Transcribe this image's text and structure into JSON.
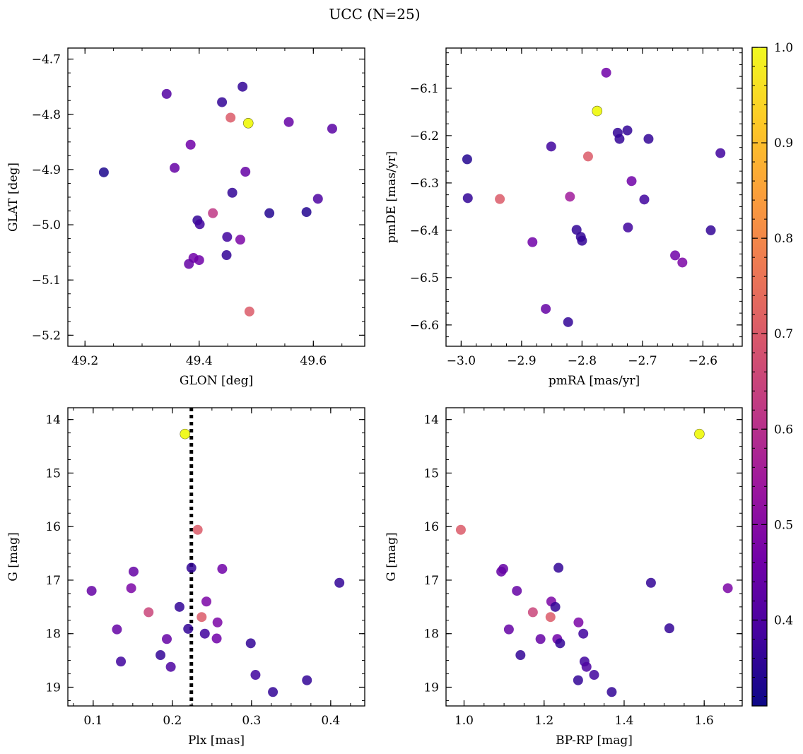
{
  "figure": {
    "title": "UCC (N=25)"
  },
  "colorbar": {
    "min": 0.31,
    "max": 1.0,
    "ticks": [
      0.4,
      0.5,
      0.6,
      0.7,
      0.8,
      0.9,
      1.0
    ],
    "tick_labels": [
      "0.4",
      "0.5",
      "0.6",
      "0.7",
      "0.8",
      "0.9",
      "1.0"
    ],
    "stops": [
      "#0d0887",
      "#46039f",
      "#7201a8",
      "#9c179e",
      "#bd3786",
      "#d8576b",
      "#ed7953",
      "#fb9f3a",
      "#fdca26",
      "#f0f921"
    ]
  },
  "chart_data": [
    {
      "type": "scatter",
      "panel": "position",
      "xlabel": "GLON [deg]",
      "ylabel": "GLAT [deg]",
      "xlim": [
        49.17,
        49.69
      ],
      "ylim": [
        -5.22,
        -4.68
      ],
      "y_inverted": false,
      "xticks": [
        49.2,
        49.4,
        49.6
      ],
      "xtick_labels": [
        "49.2",
        "49.4",
        "49.6"
      ],
      "yticks": [
        -5.2,
        -5.1,
        -5.0,
        -4.9,
        -4.8,
        -4.7
      ],
      "ytick_labels": [
        "−5.2",
        "−5.1",
        "−5.0",
        "−4.9",
        "−4.8",
        "−4.7"
      ],
      "points": [
        {
          "x": 49.233,
          "y": -4.905,
          "c": 0.33
        },
        {
          "x": 49.343,
          "y": -4.763,
          "c": 0.41
        },
        {
          "x": 49.357,
          "y": -4.897,
          "c": 0.44
        },
        {
          "x": 49.385,
          "y": -4.855,
          "c": 0.46
        },
        {
          "x": 49.44,
          "y": -4.778,
          "c": 0.36
        },
        {
          "x": 49.455,
          "y": -4.806,
          "c": 0.7
        },
        {
          "x": 49.476,
          "y": -4.75,
          "c": 0.36
        },
        {
          "x": 49.486,
          "y": -4.816,
          "c": 1.0
        },
        {
          "x": 49.481,
          "y": -4.904,
          "c": 0.44
        },
        {
          "x": 49.557,
          "y": -4.814,
          "c": 0.44
        },
        {
          "x": 49.633,
          "y": -4.826,
          "c": 0.42
        },
        {
          "x": 49.458,
          "y": -4.942,
          "c": 0.36
        },
        {
          "x": 49.608,
          "y": -4.953,
          "c": 0.4
        },
        {
          "x": 49.424,
          "y": -4.979,
          "c": 0.62
        },
        {
          "x": 49.523,
          "y": -4.979,
          "c": 0.34
        },
        {
          "x": 49.588,
          "y": -4.977,
          "c": 0.34
        },
        {
          "x": 49.397,
          "y": -4.992,
          "c": 0.36
        },
        {
          "x": 49.401,
          "y": -4.999,
          "c": 0.38
        },
        {
          "x": 49.449,
          "y": -5.022,
          "c": 0.38
        },
        {
          "x": 49.472,
          "y": -5.027,
          "c": 0.48
        },
        {
          "x": 49.448,
          "y": -5.055,
          "c": 0.36
        },
        {
          "x": 49.39,
          "y": -5.06,
          "c": 0.46
        },
        {
          "x": 49.4,
          "y": -5.064,
          "c": 0.46
        },
        {
          "x": 49.382,
          "y": -5.071,
          "c": 0.44
        },
        {
          "x": 49.488,
          "y": -5.157,
          "c": 0.7
        }
      ]
    },
    {
      "type": "scatter",
      "panel": "proper-motion",
      "xlabel": "pmRA [mas/yr]",
      "ylabel": "pmDE [mas/yr]",
      "xlim": [
        -3.025,
        -2.535
      ],
      "ylim": [
        -6.645,
        -6.015
      ],
      "y_inverted": false,
      "xticks": [
        -3.0,
        -2.9,
        -2.8,
        -2.7,
        -2.6
      ],
      "xtick_labels": [
        "−3.0",
        "−2.9",
        "−2.8",
        "−2.7",
        "−2.6"
      ],
      "yticks": [
        -6.6,
        -6.5,
        -6.4,
        -6.3,
        -6.2,
        -6.1
      ],
      "ytick_labels": [
        "−6.6",
        "−6.5",
        "−6.4",
        "−6.3",
        "−6.2",
        "−6.1"
      ],
      "points": [
        {
          "x": -2.76,
          "y": -6.067,
          "c": 0.46
        },
        {
          "x": -2.775,
          "y": -6.148,
          "c": 1.0
        },
        {
          "x": -2.741,
          "y": -6.194,
          "c": 0.36
        },
        {
          "x": -2.725,
          "y": -6.189,
          "c": 0.36
        },
        {
          "x": -2.738,
          "y": -6.207,
          "c": 0.36
        },
        {
          "x": -2.69,
          "y": -6.207,
          "c": 0.36
        },
        {
          "x": -2.571,
          "y": -6.237,
          "c": 0.38
        },
        {
          "x": -2.99,
          "y": -6.25,
          "c": 0.34
        },
        {
          "x": -2.851,
          "y": -6.223,
          "c": 0.38
        },
        {
          "x": -2.79,
          "y": -6.244,
          "c": 0.7
        },
        {
          "x": -2.718,
          "y": -6.296,
          "c": 0.46
        },
        {
          "x": -2.989,
          "y": -6.332,
          "c": 0.36
        },
        {
          "x": -2.936,
          "y": -6.334,
          "c": 0.7
        },
        {
          "x": -2.82,
          "y": -6.329,
          "c": 0.55
        },
        {
          "x": -2.697,
          "y": -6.335,
          "c": 0.38
        },
        {
          "x": -2.724,
          "y": -6.394,
          "c": 0.38
        },
        {
          "x": -2.587,
          "y": -6.4,
          "c": 0.36
        },
        {
          "x": -2.809,
          "y": -6.399,
          "c": 0.36
        },
        {
          "x": -2.802,
          "y": -6.414,
          "c": 0.36
        },
        {
          "x": -2.8,
          "y": -6.422,
          "c": 0.36
        },
        {
          "x": -2.882,
          "y": -6.425,
          "c": 0.46
        },
        {
          "x": -2.646,
          "y": -6.453,
          "c": 0.46
        },
        {
          "x": -2.634,
          "y": -6.468,
          "c": 0.48
        },
        {
          "x": -2.86,
          "y": -6.566,
          "c": 0.44
        },
        {
          "x": -2.823,
          "y": -6.594,
          "c": 0.36
        }
      ]
    },
    {
      "type": "scatter",
      "panel": "parallax-magnitude",
      "xlabel": "Plx [mas]",
      "ylabel": "G [mag]",
      "xlim": [
        0.068,
        0.443
      ],
      "ylim": [
        13.78,
        19.35
      ],
      "y_inverted": true,
      "xticks": [
        0.1,
        0.2,
        0.3,
        0.4
      ],
      "xtick_labels": [
        "0.1",
        "0.2",
        "0.3",
        "0.4"
      ],
      "yticks": [
        14,
        15,
        16,
        17,
        18,
        19
      ],
      "ytick_labels": [
        "14",
        "15",
        "16",
        "17",
        "18",
        "19"
      ],
      "vline": {
        "x": 0.224
      },
      "points": [
        {
          "x": 0.216,
          "y": 14.27,
          "c": 1.0
        },
        {
          "x": 0.232,
          "y": 16.06,
          "c": 0.7
        },
        {
          "x": 0.224,
          "y": 16.77,
          "c": 0.36
        },
        {
          "x": 0.151,
          "y": 16.84,
          "c": 0.44
        },
        {
          "x": 0.263,
          "y": 16.79,
          "c": 0.46
        },
        {
          "x": 0.411,
          "y": 17.05,
          "c": 0.36
        },
        {
          "x": 0.098,
          "y": 17.2,
          "c": 0.44
        },
        {
          "x": 0.148,
          "y": 17.15,
          "c": 0.48
        },
        {
          "x": 0.243,
          "y": 17.4,
          "c": 0.48
        },
        {
          "x": 0.209,
          "y": 17.5,
          "c": 0.36
        },
        {
          "x": 0.17,
          "y": 17.6,
          "c": 0.65
        },
        {
          "x": 0.237,
          "y": 17.69,
          "c": 0.7
        },
        {
          "x": 0.257,
          "y": 17.79,
          "c": 0.48
        },
        {
          "x": 0.13,
          "y": 17.92,
          "c": 0.44
        },
        {
          "x": 0.22,
          "y": 17.91,
          "c": 0.36
        },
        {
          "x": 0.241,
          "y": 18.0,
          "c": 0.38
        },
        {
          "x": 0.193,
          "y": 18.1,
          "c": 0.44
        },
        {
          "x": 0.256,
          "y": 18.09,
          "c": 0.46
        },
        {
          "x": 0.299,
          "y": 18.18,
          "c": 0.36
        },
        {
          "x": 0.185,
          "y": 18.4,
          "c": 0.36
        },
        {
          "x": 0.135,
          "y": 18.52,
          "c": 0.38
        },
        {
          "x": 0.198,
          "y": 18.62,
          "c": 0.4
        },
        {
          "x": 0.305,
          "y": 18.77,
          "c": 0.38
        },
        {
          "x": 0.37,
          "y": 18.87,
          "c": 0.36
        },
        {
          "x": 0.327,
          "y": 19.09,
          "c": 0.36
        }
      ]
    },
    {
      "type": "scatter",
      "panel": "color-magnitude",
      "xlabel": "BP-RP [mag]",
      "ylabel": "G [mag]",
      "xlim": [
        0.955,
        1.695
      ],
      "ylim": [
        13.78,
        19.35
      ],
      "y_inverted": true,
      "xticks": [
        1.0,
        1.2,
        1.4,
        1.6
      ],
      "xtick_labels": [
        "1.0",
        "1.2",
        "1.4",
        "1.6"
      ],
      "yticks": [
        14,
        15,
        16,
        17,
        18,
        19
      ],
      "ytick_labels": [
        "14",
        "15",
        "16",
        "17",
        "18",
        "19"
      ],
      "points": [
        {
          "x": 1.588,
          "y": 14.27,
          "c": 1.0
        },
        {
          "x": 0.992,
          "y": 16.06,
          "c": 0.7
        },
        {
          "x": 1.236,
          "y": 16.77,
          "c": 0.36
        },
        {
          "x": 1.093,
          "y": 16.84,
          "c": 0.44
        },
        {
          "x": 1.098,
          "y": 16.79,
          "c": 0.44
        },
        {
          "x": 1.467,
          "y": 17.05,
          "c": 0.36
        },
        {
          "x": 1.659,
          "y": 17.15,
          "c": 0.48
        },
        {
          "x": 1.132,
          "y": 17.2,
          "c": 0.44
        },
        {
          "x": 1.218,
          "y": 17.4,
          "c": 0.48
        },
        {
          "x": 1.228,
          "y": 17.5,
          "c": 0.36
        },
        {
          "x": 1.172,
          "y": 17.6,
          "c": 0.65
        },
        {
          "x": 1.216,
          "y": 17.69,
          "c": 0.7
        },
        {
          "x": 1.286,
          "y": 17.79,
          "c": 0.48
        },
        {
          "x": 1.112,
          "y": 17.92,
          "c": 0.44
        },
        {
          "x": 1.513,
          "y": 17.9,
          "c": 0.36
        },
        {
          "x": 1.298,
          "y": 18.0,
          "c": 0.38
        },
        {
          "x": 1.191,
          "y": 18.1,
          "c": 0.44
        },
        {
          "x": 1.233,
          "y": 18.1,
          "c": 0.46
        },
        {
          "x": 1.24,
          "y": 18.18,
          "c": 0.36
        },
        {
          "x": 1.141,
          "y": 18.4,
          "c": 0.36
        },
        {
          "x": 1.301,
          "y": 18.52,
          "c": 0.38
        },
        {
          "x": 1.306,
          "y": 18.62,
          "c": 0.4
        },
        {
          "x": 1.325,
          "y": 18.77,
          "c": 0.38
        },
        {
          "x": 1.285,
          "y": 18.87,
          "c": 0.36
        },
        {
          "x": 1.369,
          "y": 19.09,
          "c": 0.36
        }
      ]
    }
  ]
}
